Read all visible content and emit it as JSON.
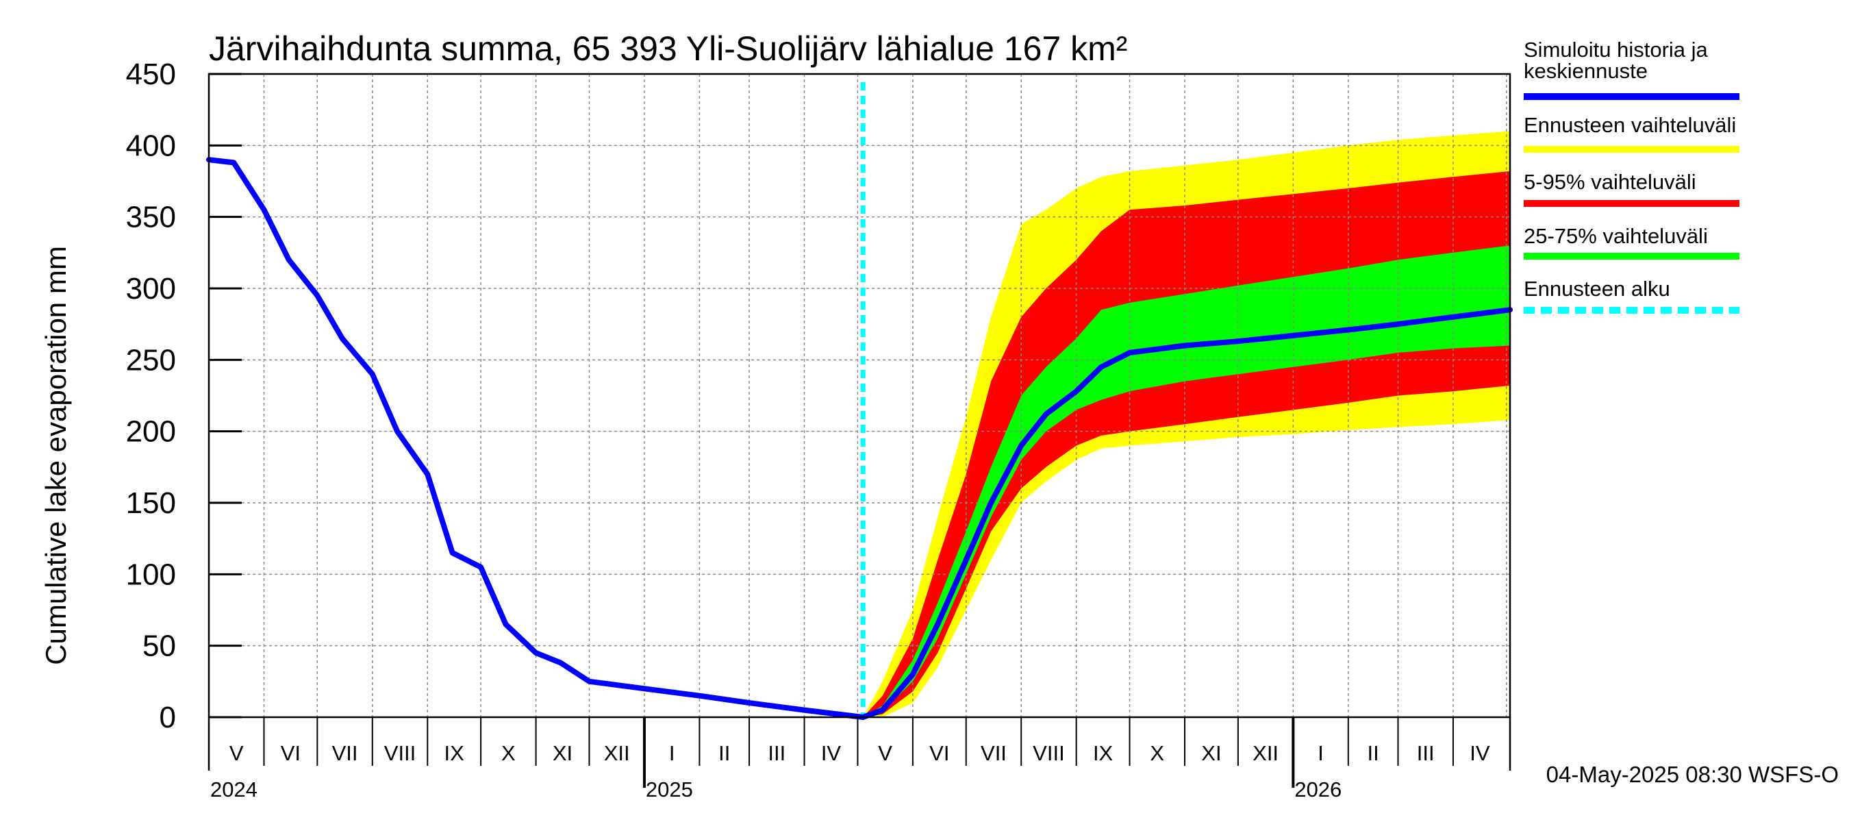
{
  "chart_data": {
    "type": "area",
    "title": "Järvihaihdunta summa, 65 393 Yli-Suolijärv lähialue 167 km²",
    "ylabel": "Cumulative lake evaporation   mm",
    "ylim": [
      0,
      450
    ],
    "yticks": [
      "0",
      "50",
      "100",
      "150",
      "200",
      "250",
      "300",
      "350",
      "400",
      "450"
    ],
    "grid": true,
    "legend_position": "right",
    "x_range": [
      "2024-05-01",
      "2026-05-03"
    ],
    "months": [
      "V",
      "VI",
      "VII",
      "VIII",
      "IX",
      "X",
      "XI",
      "XII",
      "I",
      "II",
      "III",
      "IV",
      "V",
      "VI",
      "VII",
      "VIII",
      "IX",
      "X",
      "XI",
      "XII",
      "I",
      "II",
      "III",
      "IV"
    ],
    "years": [
      {
        "label": "2024",
        "date": "2024-05-01"
      },
      {
        "label": "2025",
        "date": "2025-01-01"
      },
      {
        "label": "2026",
        "date": "2026-01-01"
      }
    ],
    "forecast_start": "2025-05-04",
    "colors": {
      "history": "#0000ff",
      "range": "#ffff00",
      "p5_95": "#ff0000",
      "p25_75": "#00ff00",
      "forecast_start": "#00ffff",
      "grid": "#888888"
    },
    "legend": [
      {
        "key": "history",
        "label": "Simuloitu historia ja keskiennuste",
        "lines": [
          "Simuloitu historia ja",
          "keskiennuste"
        ],
        "style": "solid"
      },
      {
        "key": "range",
        "label": "Ennusteen vaihteluväli",
        "lines": [
          "Ennusteen vaihteluväli"
        ],
        "style": "solid"
      },
      {
        "key": "p5_95",
        "label": "5-95% vaihteluväli",
        "lines": [
          "5-95% vaihteluväli"
        ],
        "style": "solid"
      },
      {
        "key": "p25_75",
        "label": "25-75% vaihteluväli",
        "lines": [
          "25-75% vaihteluväli"
        ],
        "style": "solid"
      },
      {
        "key": "forecast_start",
        "label": "Ennusteen alku",
        "lines": [
          "Ennusteen alku"
        ],
        "style": "dashed"
      }
    ],
    "series": [
      {
        "key": "history",
        "x": [
          "2024-05-01",
          "2024-05-15",
          "2024-06-01",
          "2024-06-15",
          "2024-07-01",
          "2024-07-15",
          "2024-08-01",
          "2024-08-15",
          "2024-09-01",
          "2024-09-15",
          "2024-10-01",
          "2024-10-15",
          "2024-11-01",
          "2024-11-15",
          "2024-12-01",
          "2025-01-01",
          "2025-02-01",
          "2025-03-01",
          "2025-04-01",
          "2025-05-04"
        ],
        "y": [
          390,
          388,
          355,
          320,
          295,
          265,
          240,
          200,
          170,
          115,
          105,
          65,
          45,
          38,
          25,
          20,
          15,
          10,
          5,
          0
        ]
      },
      {
        "key": "median",
        "x": [
          "2025-05-04",
          "2025-05-15",
          "2025-06-01",
          "2025-06-15",
          "2025-07-01",
          "2025-07-15",
          "2025-08-01",
          "2025-08-15",
          "2025-09-01",
          "2025-09-15",
          "2025-10-01",
          "2025-11-01",
          "2025-12-01",
          "2026-01-01",
          "2026-02-01",
          "2026-03-01",
          "2026-04-01",
          "2026-05-03"
        ],
        "y": [
          0,
          5,
          30,
          65,
          110,
          150,
          190,
          212,
          228,
          245,
          255,
          260,
          263,
          267,
          271,
          275,
          280,
          285
        ]
      },
      {
        "key": "range",
        "x": [
          "2025-05-04",
          "2025-05-15",
          "2025-06-01",
          "2025-06-15",
          "2025-07-01",
          "2025-07-15",
          "2025-08-01",
          "2025-08-15",
          "2025-09-01",
          "2025-09-15",
          "2025-10-01",
          "2025-11-01",
          "2025-12-01",
          "2026-01-01",
          "2026-02-01",
          "2026-03-01",
          "2026-04-01",
          "2026-05-03"
        ],
        "low": [
          0,
          0,
          10,
          35,
          75,
          110,
          150,
          165,
          180,
          188,
          190,
          193,
          196,
          198,
          201,
          203,
          205,
          208
        ],
        "high": [
          0,
          25,
          75,
          140,
          210,
          280,
          345,
          355,
          370,
          378,
          382,
          386,
          390,
          395,
          400,
          404,
          407,
          410
        ]
      },
      {
        "key": "p5_95",
        "x": [
          "2025-05-04",
          "2025-05-15",
          "2025-06-01",
          "2025-06-15",
          "2025-07-01",
          "2025-07-15",
          "2025-08-01",
          "2025-08-15",
          "2025-09-01",
          "2025-09-15",
          "2025-10-01",
          "2025-11-01",
          "2025-12-01",
          "2026-01-01",
          "2026-02-01",
          "2026-03-01",
          "2026-04-01",
          "2026-05-03"
        ],
        "low": [
          0,
          2,
          18,
          45,
          90,
          130,
          160,
          175,
          190,
          197,
          200,
          205,
          210,
          215,
          220,
          225,
          228,
          232
        ],
        "high": [
          0,
          15,
          55,
          110,
          170,
          235,
          280,
          300,
          320,
          340,
          355,
          358,
          362,
          366,
          370,
          374,
          378,
          382
        ]
      },
      {
        "key": "p25_75",
        "x": [
          "2025-05-04",
          "2025-05-15",
          "2025-06-01",
          "2025-06-15",
          "2025-07-01",
          "2025-07-15",
          "2025-08-01",
          "2025-08-15",
          "2025-09-01",
          "2025-09-15",
          "2025-10-01",
          "2025-11-01",
          "2025-12-01",
          "2026-01-01",
          "2026-02-01",
          "2026-03-01",
          "2026-04-01",
          "2026-05-03"
        ],
        "low": [
          0,
          4,
          25,
          55,
          100,
          140,
          180,
          200,
          215,
          222,
          228,
          235,
          240,
          245,
          250,
          255,
          258,
          260
        ],
        "high": [
          0,
          8,
          40,
          80,
          130,
          175,
          225,
          245,
          265,
          285,
          290,
          296,
          302,
          308,
          314,
          320,
          325,
          330
        ]
      }
    ]
  },
  "footer": "04-May-2025 08:30 WSFS-O"
}
